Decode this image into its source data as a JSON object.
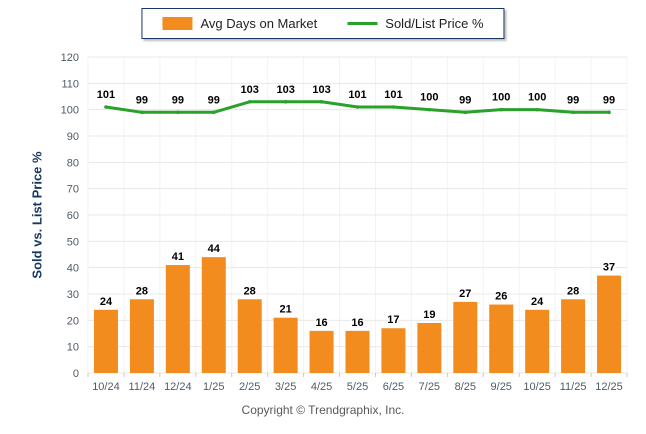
{
  "chart_data": {
    "type": "combo",
    "categories": [
      "10/24",
      "11/24",
      "12/24",
      "1/25",
      "2/25",
      "3/25",
      "4/25",
      "5/25",
      "6/25",
      "7/25",
      "8/25",
      "9/25",
      "10/25",
      "11/25",
      "12/25"
    ],
    "series": [
      {
        "name": "Avg Days on Market",
        "type": "bar",
        "color": "#F28C1E",
        "values": [
          24,
          28,
          41,
          44,
          28,
          21,
          16,
          16,
          17,
          19,
          27,
          26,
          24,
          28,
          37
        ]
      },
      {
        "name": "Sold/List Price %",
        "type": "line",
        "color": "#2AA12A",
        "values": [
          101,
          99,
          99,
          99,
          103,
          103,
          103,
          101,
          101,
          100,
          99,
          100,
          100,
          99,
          99
        ]
      }
    ],
    "title": "",
    "xlabel": "",
    "ylabel": "Sold vs. List Price %",
    "ylim": [
      0,
      120
    ],
    "ytick_step": 10,
    "grid": true,
    "legend_position": "top",
    "value_labels": true
  },
  "theme": {
    "axis_title_color": "#17375E",
    "legend_border_color": "#17375E",
    "tick_label_color": "#4f5b66",
    "value_label_color": "#000000"
  },
  "footer": {
    "copyright": "Copyright © Trendgraphix, Inc."
  }
}
